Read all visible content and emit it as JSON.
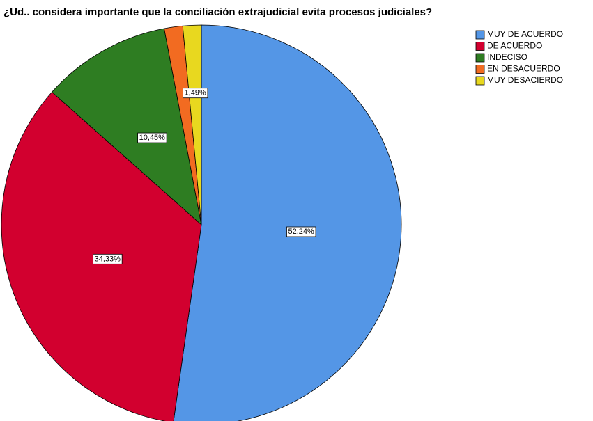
{
  "chart_data": {
    "type": "pie",
    "title": "¿Ud.. considera importante que la conciliación extrajudicial evita procesos judiciales?",
    "categories": [
      "MUY DE ACUERDO",
      "DE ACUERDO",
      "INDECISO",
      "EN DESACUERDO",
      "MUY DESACIERDO"
    ],
    "values": [
      52.24,
      34.33,
      10.45,
      1.49,
      1.49
    ],
    "value_labels": [
      "52,24%",
      "34,33%",
      "10,45%",
      null,
      "1,49%"
    ],
    "colors": [
      "#5496e6",
      "#d2002f",
      "#2e7d22",
      "#f26b21",
      "#e8d81f"
    ],
    "legend": "top-right"
  }
}
